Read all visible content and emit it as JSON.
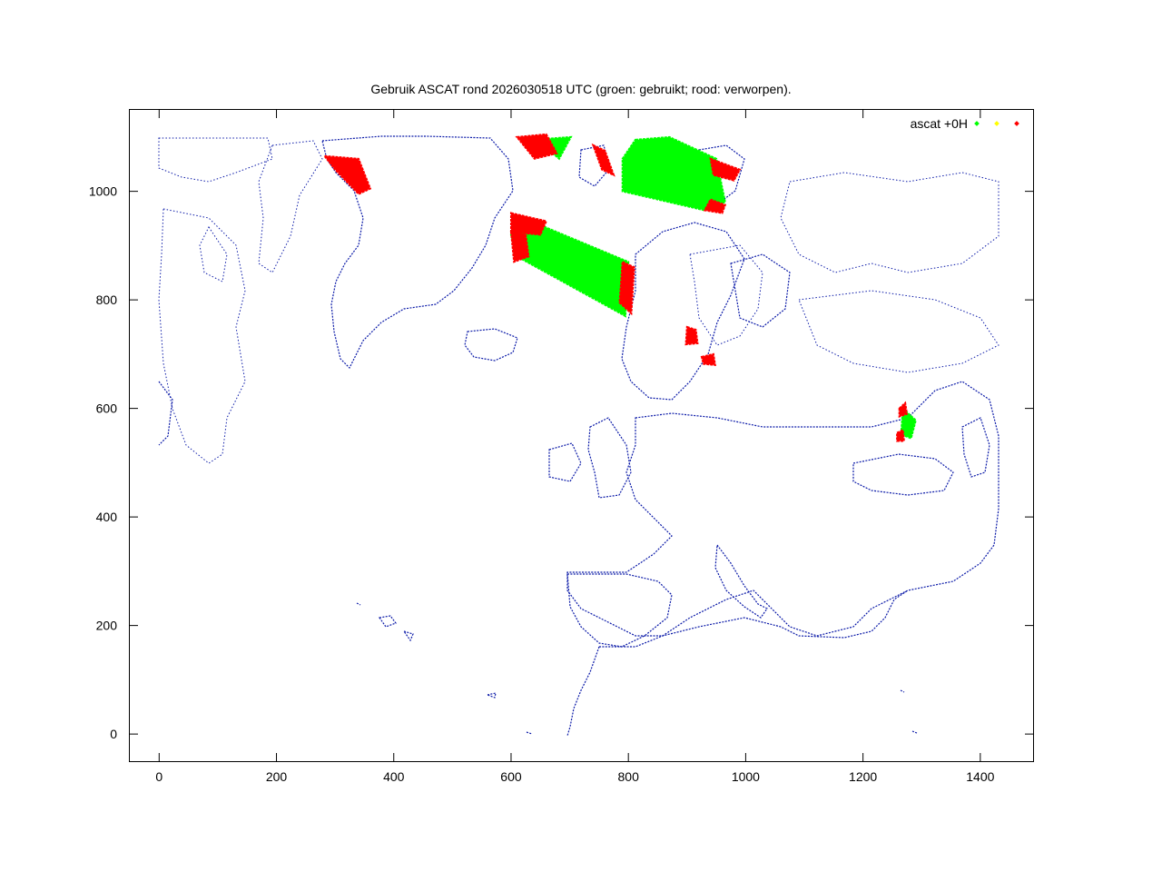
{
  "chart_data": {
    "type": "scatter",
    "title": "Gebruik ASCAT rond 2026030518 UTC (groen: gebruikt; rood: verworpen).",
    "xlabel": "",
    "ylabel": "",
    "xlim": [
      -50,
      1490
    ],
    "ylim": [
      -50,
      1150
    ],
    "xticks": [
      0,
      200,
      400,
      600,
      800,
      1000,
      1200,
      1400
    ],
    "yticks": [
      0,
      200,
      400,
      600,
      800,
      1000
    ],
    "grid": false,
    "legend": {
      "placement": "top-right",
      "label": "ascat +0H",
      "colors": [
        "#00ff00",
        "#ffff00",
        "#ff0000"
      ]
    },
    "series": [
      {
        "color": "#00ff00",
        "regions": [
          {
            "polygon": [
              [
                637,
                1095
              ],
              [
                702,
                1100
              ],
              [
                682,
                1060
              ],
              [
                660,
                1080
              ]
            ]
          },
          {
            "polygon": [
              [
                645,
                940
              ],
              [
                800,
                870
              ],
              [
                795,
                770
              ],
              [
                610,
                880
              ],
              [
                600,
                920
              ]
            ]
          },
          {
            "polygon": [
              [
                812,
                1095
              ],
              [
                870,
                1100
              ],
              [
                950,
                1060
              ],
              [
                965,
                980
              ],
              [
                930,
                965
              ],
              [
                790,
                1000
              ],
              [
                790,
                1060
              ]
            ]
          },
          {
            "polygon": [
              [
                1268,
                600
              ],
              [
                1290,
                578
              ],
              [
                1282,
                545
              ],
              [
                1265,
                552
              ]
            ]
          }
        ]
      },
      {
        "color": "#ff0000",
        "regions": [
          {
            "polygon": [
              [
                282,
                1065
              ],
              [
                340,
                1060
              ],
              [
                360,
                1005
              ],
              [
                340,
                995
              ],
              [
                300,
                1040
              ]
            ]
          },
          {
            "polygon": [
              [
                610,
                1100
              ],
              [
                660,
                1105
              ],
              [
                678,
                1070
              ],
              [
                640,
                1060
              ],
              [
                625,
                1080
              ]
            ]
          },
          {
            "polygon": [
              [
                600,
                960
              ],
              [
                660,
                945
              ],
              [
                650,
                920
              ],
              [
                600,
                925
              ]
            ]
          },
          {
            "polygon": [
              [
                600,
                925
              ],
              [
                625,
                920
              ],
              [
                630,
                880
              ],
              [
                605,
                870
              ]
            ]
          },
          {
            "polygon": [
              [
                790,
                870
              ],
              [
                810,
                860
              ],
              [
                805,
                775
              ],
              [
                785,
                795
              ]
            ]
          },
          {
            "polygon": [
              [
                740,
                1085
              ],
              [
                760,
                1075
              ],
              [
                775,
                1030
              ],
              [
                755,
                1040
              ]
            ]
          },
          {
            "polygon": [
              [
                940,
                1060
              ],
              [
                990,
                1040
              ],
              [
                980,
                1020
              ],
              [
                945,
                1030
              ]
            ]
          },
          {
            "polygon": [
              [
                940,
                985
              ],
              [
                965,
                975
              ],
              [
                960,
                960
              ],
              [
                930,
                965
              ]
            ]
          },
          {
            "polygon": [
              [
                900,
                750
              ],
              [
                915,
                745
              ],
              [
                918,
                720
              ],
              [
                898,
                718
              ]
            ]
          },
          {
            "polygon": [
              [
                925,
                695
              ],
              [
                945,
                700
              ],
              [
                948,
                680
              ],
              [
                928,
                682
              ]
            ]
          },
          {
            "polygon": [
              [
                1262,
                600
              ],
              [
                1272,
                610
              ],
              [
                1275,
                590
              ],
              [
                1262,
                585
              ]
            ]
          },
          {
            "polygon": [
              [
                1258,
                555
              ],
              [
                1268,
                560
              ],
              [
                1270,
                540
              ],
              [
                1258,
                540
              ]
            ]
          }
        ]
      }
    ]
  }
}
